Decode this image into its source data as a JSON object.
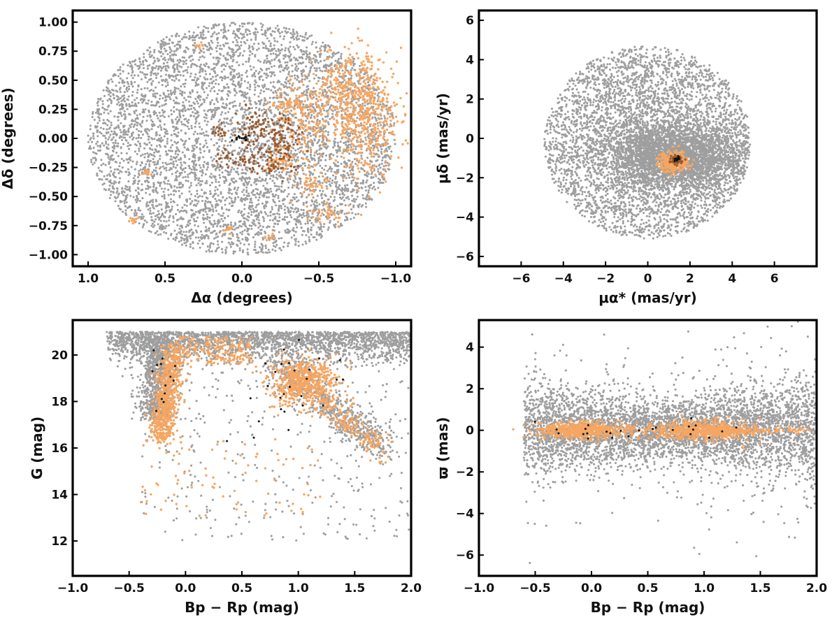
{
  "colors": {
    "field": "#9e9e9e",
    "members": "#f5a662",
    "members_mid": "#9a5a2f",
    "core": "#111111"
  },
  "chart_data": [
    {
      "id": "sky",
      "type": "scatter",
      "xlabel": "Δα (degrees)",
      "ylabel": "Δδ (degrees)",
      "xlim": [
        1.1,
        -1.1
      ],
      "ylim": [
        -1.1,
        1.1
      ],
      "xticks": [
        "1.0",
        "0.5",
        "0.0",
        "−0.5",
        "−1.0"
      ],
      "xtick_values": [
        1.0,
        0.5,
        0.0,
        -0.5,
        -1.0
      ],
      "yticks": [
        "1.00",
        "0.75",
        "0.50",
        "0.25",
        "0.00",
        "−0.25",
        "−0.50",
        "−0.75",
        "−1.00"
      ],
      "ytick_values": [
        1.0,
        0.75,
        0.5,
        0.25,
        0.0,
        -0.25,
        -0.5,
        -0.75,
        -1.0
      ],
      "series": [
        {
          "color": "field",
          "distribution": "uniform disk",
          "center": [
            0,
            0
          ],
          "radius": 1.0,
          "count": 5200
        },
        {
          "color": "members",
          "distribution": "clumps",
          "clumps": [
            [
              -0.8,
              0.2,
              0.12,
              0.25,
              520
            ],
            [
              -0.65,
              0.45,
              0.08,
              0.12,
              120
            ],
            [
              -0.42,
              0.15,
              0.1,
              0.2,
              220
            ],
            [
              -0.3,
              0.3,
              0.05,
              0.04,
              40
            ],
            [
              -0.45,
              -0.4,
              0.05,
              0.04,
              35
            ],
            [
              -0.55,
              -0.65,
              0.06,
              0.04,
              40
            ],
            [
              0.62,
              -0.3,
              0.015,
              0.015,
              18
            ],
            [
              0.28,
              0.8,
              0.015,
              0.015,
              12
            ],
            [
              0.7,
              -0.7,
              0.02,
              0.02,
              10
            ],
            [
              0.1,
              -0.78,
              0.015,
              0.015,
              10
            ],
            [
              -0.18,
              -0.85,
              0.015,
              0.015,
              10
            ],
            [
              -0.25,
              -0.2,
              0.04,
              0.04,
              40
            ]
          ]
        },
        {
          "color": "members_mid",
          "distribution": "clumps",
          "clumps": [
            [
              -0.25,
              -0.05,
              0.07,
              0.12,
              110
            ],
            [
              -0.08,
              0.08,
              0.06,
              0.1,
              60
            ],
            [
              0.15,
              0.05,
              0.03,
              0.03,
              15
            ],
            [
              0.1,
              -0.18,
              0.04,
              0.04,
              18
            ],
            [
              -0.05,
              -0.2,
              0.05,
              0.05,
              30
            ],
            [
              -0.2,
              -0.25,
              0.03,
              0.02,
              14
            ]
          ]
        },
        {
          "color": "core",
          "distribution": "clumps",
          "clumps": [
            [
              0.0,
              0.0,
              0.025,
              0.012,
              15
            ]
          ]
        }
      ]
    },
    {
      "id": "pm",
      "type": "scatter",
      "xlabel": "μα* (mas/yr)",
      "ylabel": "μδ (mas/yr)",
      "xlim": [
        -8,
        8
      ],
      "ylim": [
        -6.5,
        6.5
      ],
      "xticks": [
        "−6",
        "−4",
        "−2",
        "0",
        "2",
        "4",
        "6"
      ],
      "xtick_values": [
        -6,
        -4,
        -2,
        0,
        2,
        4,
        6
      ],
      "yticks": [
        "6",
        "4",
        "2",
        "0",
        "−2",
        "−4",
        "−6"
      ],
      "ytick_values": [
        6,
        4,
        2,
        0,
        -2,
        -4,
        -6
      ],
      "series": [
        {
          "color": "field",
          "distribution": "disk",
          "center": [
            0,
            -0.2
          ],
          "radius": 4.9,
          "count": 4500,
          "core_center": [
            1.5,
            -1.0
          ],
          "core_sigma": [
            1.6,
            0.8
          ],
          "core_count": 2500
        },
        {
          "color": "members",
          "distribution": "clumps",
          "clumps": [
            [
              1.2,
              -1.2,
              0.35,
              0.25,
              300
            ]
          ]
        },
        {
          "color": "members_mid",
          "distribution": "clumps",
          "clumps": [
            [
              1.35,
              -1.1,
              0.15,
              0.12,
              60
            ]
          ]
        },
        {
          "color": "core",
          "distribution": "clumps",
          "clumps": [
            [
              1.35,
              -1.05,
              0.08,
              0.08,
              12
            ]
          ]
        }
      ]
    },
    {
      "id": "cmd",
      "type": "scatter",
      "xlabel": "Bp − Rp (mag)",
      "ylabel": "G (mag)",
      "xlim": [
        -1.0,
        2.0
      ],
      "ylim": [
        10.5,
        21.5
      ],
      "xticks": [
        "−1.0",
        "−0.5",
        "0.0",
        "0.5",
        "1.0",
        "1.5",
        "2.0"
      ],
      "xtick_values": [
        -1.0,
        -0.5,
        0.0,
        0.5,
        1.0,
        1.5,
        2.0
      ],
      "yticks": [
        "20",
        "18",
        "16",
        "14",
        "12"
      ],
      "ytick_values": [
        20,
        18,
        16,
        14,
        12
      ],
      "series": [
        {
          "color": "field",
          "distribution": "cmd-field",
          "count": 4200
        },
        {
          "color": "members",
          "distribution": "cmd-members",
          "count": 1700
        },
        {
          "color": "core",
          "distribution": "cmd-core",
          "count": 40
        }
      ]
    },
    {
      "id": "parallax",
      "type": "scatter",
      "xlabel": "Bp − Rp (mag)",
      "ylabel": "ϖ (mas)",
      "xlim": [
        -1.0,
        2.0
      ],
      "ylim": [
        -7,
        5.3
      ],
      "xticks": [
        "−1.0",
        "−0.5",
        "0.0",
        "0.5",
        "1.0",
        "1.5",
        "2.0"
      ],
      "xtick_values": [
        -1.0,
        -0.5,
        0.0,
        0.5,
        1.0,
        1.5,
        2.0
      ],
      "yticks": [
        "4",
        "2",
        "0",
        "−2",
        "−4",
        "−6"
      ],
      "ytick_values": [
        4,
        2,
        0,
        -2,
        -4,
        -6
      ],
      "series": [
        {
          "color": "field",
          "distribution": "plx-field",
          "count": 4800
        },
        {
          "color": "members",
          "distribution": "plx-members",
          "count": 1400
        },
        {
          "color": "core",
          "distribution": "plx-core",
          "count": 25
        }
      ]
    }
  ]
}
